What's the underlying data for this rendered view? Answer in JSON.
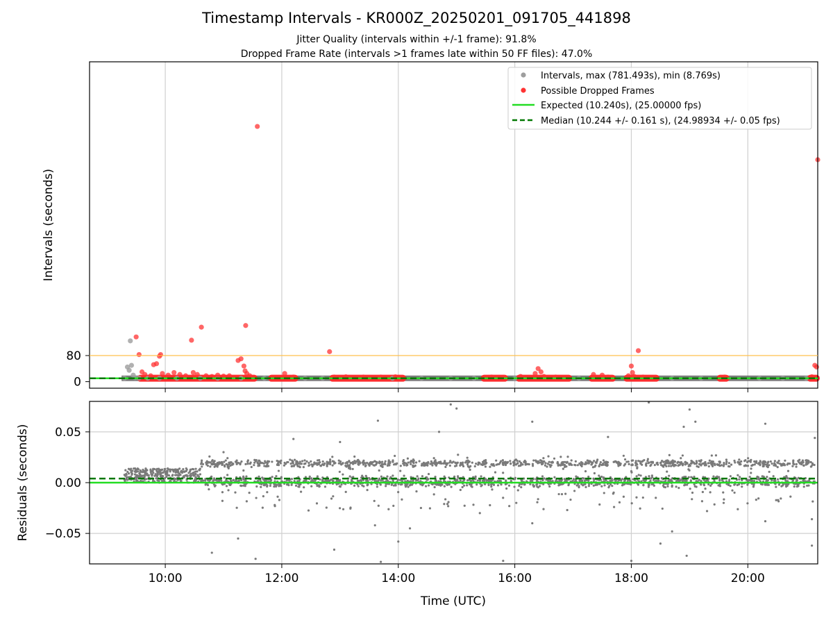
{
  "chart_data": {
    "title": "Timestamp Intervals - KR000Z_20250201_091705_441898",
    "subtitle_lines": [
      "Jitter Quality (intervals within +/-1 frame): 91.8%",
      "Dropped Frame Rate (intervals >1 frames late within 50 FF files): 47.0%"
    ],
    "xlabel": "Time (UTC)",
    "x_ticks": [
      "10:00",
      "12:00",
      "14:00",
      "16:00",
      "18:00",
      "20:00"
    ],
    "x_tick_hours": [
      10,
      12,
      14,
      16,
      18,
      20
    ],
    "xlim_hours": [
      8.7,
      21.2
    ],
    "panels": [
      {
        "type": "scatter",
        "ylabel": "Intervals (seconds)",
        "ylim": [
          -20,
          980
        ],
        "y_ticks": [
          0,
          80
        ],
        "threshold_line": {
          "y": 80,
          "color": "#ffc04d"
        },
        "expected_line": {
          "y": 10.24,
          "color": "#22dd22"
        },
        "median_line": {
          "y": 10.244,
          "color": "#007700"
        },
        "legend": [
          {
            "label": "Intervals, max (781.493s), min (8.769s)",
            "kind": "dot",
            "color": "#9e9e9e"
          },
          {
            "label": "Possible Dropped Frames",
            "kind": "dot",
            "color": "#ff3333"
          },
          {
            "label": "Expected (10.240s), (25.00000 fps)",
            "kind": "line",
            "color": "#22dd22"
          },
          {
            "label": "Median (10.244 +/- 0.161 s), (24.98934 +/- 0.05 fps)",
            "kind": "dashed",
            "color": "#007700"
          }
        ],
        "normal_points": [
          [
            9.3,
            10.3
          ],
          [
            9.35,
            45
          ],
          [
            9.38,
            35
          ],
          [
            9.4,
            125
          ],
          [
            9.42,
            50
          ],
          [
            9.45,
            20
          ],
          [
            9.48,
            12
          ],
          [
            9.55,
            11
          ],
          [
            9.7,
            10.5
          ],
          [
            9.9,
            10.4
          ],
          [
            10.2,
            10.3
          ],
          [
            10.6,
            10.4
          ],
          [
            10.9,
            10.3
          ],
          [
            11.3,
            10.5
          ],
          [
            11.7,
            10.3
          ],
          [
            12.4,
            10.3
          ],
          [
            12.7,
            10.4
          ],
          [
            13.9,
            10.3
          ],
          [
            14.4,
            10.3
          ],
          [
            14.9,
            10.4
          ],
          [
            15.3,
            10.3
          ],
          [
            16.0,
            10.4
          ],
          [
            17.1,
            10.3
          ],
          [
            18.7,
            10.3
          ],
          [
            19.2,
            10.4
          ],
          [
            20.2,
            10.3
          ],
          [
            20.6,
            10.4
          ],
          [
            21.0,
            10.3
          ]
        ],
        "dropped_points": [
          [
            9.5,
            137
          ],
          [
            9.55,
            83
          ],
          [
            9.6,
            30
          ],
          [
            9.65,
            22
          ],
          [
            9.75,
            18
          ],
          [
            9.8,
            52
          ],
          [
            9.85,
            55
          ],
          [
            9.9,
            78
          ],
          [
            9.92,
            83
          ],
          [
            9.95,
            25
          ],
          [
            10.05,
            20
          ],
          [
            10.15,
            28
          ],
          [
            10.25,
            22
          ],
          [
            10.35,
            18
          ],
          [
            10.45,
            127
          ],
          [
            10.48,
            28
          ],
          [
            10.55,
            22
          ],
          [
            10.62,
            167
          ],
          [
            10.7,
            18
          ],
          [
            10.8,
            16
          ],
          [
            10.9,
            20
          ],
          [
            11.0,
            17
          ],
          [
            11.1,
            18
          ],
          [
            11.25,
            65
          ],
          [
            11.3,
            70
          ],
          [
            11.35,
            48
          ],
          [
            11.37,
            33
          ],
          [
            11.38,
            172
          ],
          [
            11.4,
            25
          ],
          [
            11.45,
            18
          ],
          [
            11.58,
            782
          ],
          [
            12.05,
            25
          ],
          [
            12.2,
            14
          ],
          [
            12.82,
            92
          ],
          [
            12.9,
            14
          ],
          [
            13.1,
            15
          ],
          [
            13.4,
            14
          ],
          [
            13.7,
            14
          ],
          [
            13.95,
            15
          ],
          [
            15.6,
            14
          ],
          [
            15.8,
            13
          ],
          [
            16.1,
            16
          ],
          [
            16.35,
            25
          ],
          [
            16.4,
            40
          ],
          [
            16.45,
            30
          ],
          [
            16.5,
            16
          ],
          [
            16.7,
            14
          ],
          [
            17.35,
            22
          ],
          [
            17.5,
            20
          ],
          [
            17.6,
            14
          ],
          [
            17.95,
            18
          ],
          [
            18.0,
            48
          ],
          [
            18.02,
            28
          ],
          [
            18.05,
            16
          ],
          [
            18.12,
            95
          ],
          [
            18.2,
            14
          ],
          [
            19.6,
            14
          ],
          [
            21.1,
            15
          ],
          [
            21.15,
            50
          ],
          [
            21.18,
            45
          ],
          [
            21.2,
            680
          ]
        ],
        "dropped_bands": [
          [
            9.55,
            11.55
          ],
          [
            11.8,
            12.25
          ],
          [
            12.85,
            14.1
          ],
          [
            15.45,
            15.85
          ],
          [
            16.05,
            16.95
          ],
          [
            17.3,
            17.7
          ],
          [
            17.9,
            18.45
          ],
          [
            19.5,
            19.65
          ],
          [
            21.05,
            21.2
          ]
        ],
        "normal_band": [
          9.25,
          21.2
        ]
      },
      {
        "type": "scatter",
        "ylabel": "Residuals (seconds)",
        "ylim": [
          -0.08,
          0.08
        ],
        "y_ticks": [
          -0.05,
          0.0,
          0.05
        ],
        "y_tick_labels": [
          "−0.05",
          "0.00",
          "0.05"
        ],
        "expected_line": {
          "y": 0.0,
          "color": "#22dd22"
        },
        "median_line": {
          "y": 0.004,
          "color": "#007700"
        },
        "point_color": "#7a7a7a",
        "x_range": [
          9.3,
          21.15
        ],
        "bands": [
          {
            "center": 0.001,
            "spread": 0.006
          },
          {
            "center": 0.019,
            "spread": 0.004
          }
        ],
        "outliers": [
          [
            10.8,
            -0.069
          ],
          [
            11.25,
            -0.055
          ],
          [
            11.55,
            -0.075
          ],
          [
            12.9,
            -0.066
          ],
          [
            13.7,
            -0.078
          ],
          [
            13.65,
            0.061
          ],
          [
            13.6,
            -0.042
          ],
          [
            14.0,
            -0.058
          ],
          [
            14.2,
            -0.045
          ],
          [
            14.9,
            0.077
          ],
          [
            15.0,
            0.073
          ],
          [
            15.8,
            -0.077
          ],
          [
            16.3,
            0.06
          ],
          [
            16.3,
            -0.04
          ],
          [
            18.0,
            -0.077
          ],
          [
            18.3,
            0.079
          ],
          [
            18.5,
            -0.06
          ],
          [
            18.7,
            -0.048
          ],
          [
            18.95,
            -0.072
          ],
          [
            19.0,
            0.072
          ],
          [
            19.1,
            0.06
          ],
          [
            20.3,
            0.058
          ],
          [
            20.3,
            -0.038
          ],
          [
            21.1,
            -0.036
          ],
          [
            21.1,
            -0.062
          ],
          [
            21.15,
            0.044
          ],
          [
            14.7,
            0.05
          ],
          [
            17.6,
            0.045
          ],
          [
            18.9,
            0.055
          ],
          [
            12.2,
            0.043
          ],
          [
            11.0,
            0.03
          ],
          [
            15.4,
            -0.03
          ],
          [
            19.3,
            -0.028
          ],
          [
            13.0,
            0.04
          ],
          [
            16.9,
            -0.027
          ]
        ]
      }
    ]
  }
}
